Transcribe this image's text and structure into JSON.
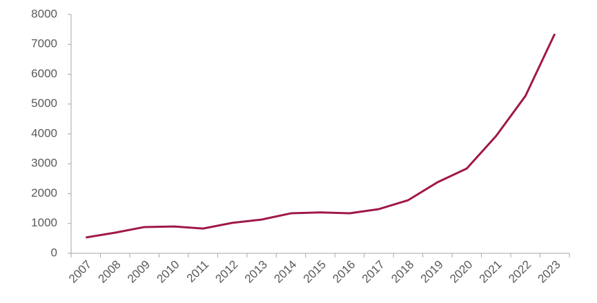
{
  "chart_data": {
    "type": "line",
    "categories": [
      "2007",
      "2008",
      "2009",
      "2010",
      "2011",
      "2012",
      "2013",
      "2014",
      "2015",
      "2016",
      "2017",
      "2018",
      "2019",
      "2020",
      "2021",
      "2022",
      "2023"
    ],
    "values": [
      530,
      690,
      880,
      900,
      830,
      1020,
      1130,
      1340,
      1370,
      1340,
      1480,
      1780,
      2380,
      2840,
      3930,
      5270,
      7350
    ],
    "color": "#a0174a",
    "ylim": [
      0,
      8000
    ],
    "yticks": [
      0,
      1000,
      2000,
      3000,
      4000,
      5000,
      6000,
      7000,
      8000
    ],
    "grid": false
  }
}
